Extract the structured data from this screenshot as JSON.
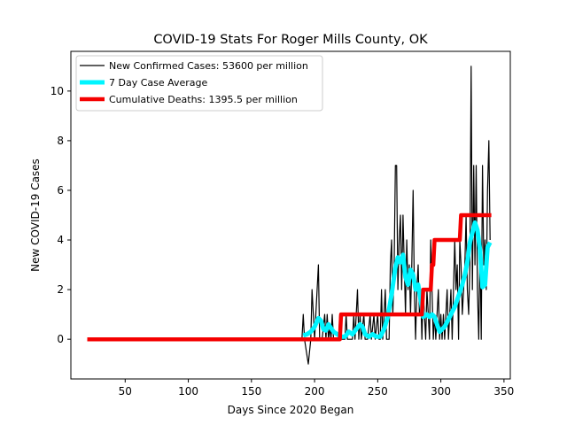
{
  "chart_data": {
    "type": "line",
    "title": "COVID-19 Stats For Roger Mills County, OK",
    "xlabel": "Days Since 2020 Began",
    "ylabel": "New COVID-19 Cases",
    "xlim": [
      7,
      355
    ],
    "ylim": [
      -1.6,
      11.6
    ],
    "xticks": [
      50,
      100,
      150,
      200,
      250,
      300,
      350
    ],
    "yticks": [
      0,
      2,
      4,
      6,
      8,
      10
    ],
    "grid": false,
    "legend_position": "upper-left",
    "series": [
      {
        "name": "New Confirmed Cases: 53600 per million",
        "color": "#000000",
        "points": [
          [
            20,
            0
          ],
          [
            190,
            0
          ],
          [
            191,
            1
          ],
          [
            192,
            0
          ],
          [
            195,
            -1
          ],
          [
            197,
            0
          ],
          [
            198,
            2
          ],
          [
            199,
            1
          ],
          [
            200,
            0
          ],
          [
            201,
            1
          ],
          [
            203,
            3
          ],
          [
            204,
            0
          ],
          [
            206,
            0
          ],
          [
            208,
            1
          ],
          [
            209,
            0
          ],
          [
            210,
            1
          ],
          [
            211,
            0
          ],
          [
            212,
            0.5
          ],
          [
            213,
            0
          ],
          [
            214,
            1
          ],
          [
            215,
            0
          ],
          [
            218,
            0
          ],
          [
            219,
            0
          ],
          [
            220,
            1
          ],
          [
            221,
            0
          ],
          [
            224,
            0
          ],
          [
            225,
            1
          ],
          [
            226,
            0
          ],
          [
            230,
            0
          ],
          [
            231,
            1
          ],
          [
            232,
            0
          ],
          [
            233,
            1
          ],
          [
            234,
            2
          ],
          [
            235,
            0
          ],
          [
            236,
            1
          ],
          [
            237,
            0
          ],
          [
            239,
            1
          ],
          [
            240,
            0
          ],
          [
            242,
            0
          ],
          [
            244,
            1
          ],
          [
            245,
            0
          ],
          [
            247,
            1
          ],
          [
            248,
            0
          ],
          [
            250,
            1
          ],
          [
            251,
            0
          ],
          [
            252,
            0
          ],
          [
            253,
            2
          ],
          [
            254,
            0
          ],
          [
            255,
            1
          ],
          [
            256,
            2
          ],
          [
            257,
            0
          ],
          [
            259,
            0
          ],
          [
            260,
            3
          ],
          [
            261,
            4
          ],
          [
            262,
            1
          ],
          [
            263,
            3
          ],
          [
            264,
            7
          ],
          [
            265,
            7
          ],
          [
            266,
            2
          ],
          [
            267,
            4
          ],
          [
            268,
            5
          ],
          [
            269,
            2
          ],
          [
            270,
            5
          ],
          [
            271,
            3
          ],
          [
            272,
            1
          ],
          [
            273,
            4
          ],
          [
            274,
            2
          ],
          [
            275,
            3
          ],
          [
            276,
            1
          ],
          [
            277,
            3
          ],
          [
            278,
            6
          ],
          [
            279,
            2
          ],
          [
            280,
            0
          ],
          [
            281,
            2
          ],
          [
            282,
            3
          ],
          [
            283,
            1
          ],
          [
            284,
            2
          ],
          [
            285,
            0
          ],
          [
            286,
            2
          ],
          [
            287,
            1
          ],
          [
            288,
            0
          ],
          [
            289,
            2
          ],
          [
            290,
            1
          ],
          [
            291,
            0
          ],
          [
            292,
            4
          ],
          [
            293,
            2
          ],
          [
            294,
            0
          ],
          [
            295,
            1
          ],
          [
            296,
            0
          ],
          [
            297,
            1
          ],
          [
            298,
            2
          ],
          [
            299,
            0
          ],
          [
            300,
            1
          ],
          [
            301,
            0
          ],
          [
            302,
            1
          ],
          [
            303,
            0
          ],
          [
            304,
            1
          ],
          [
            305,
            2
          ],
          [
            306,
            0
          ],
          [
            307,
            1
          ],
          [
            308,
            2
          ],
          [
            309,
            0
          ],
          [
            310,
            2
          ],
          [
            311,
            4
          ],
          [
            312,
            2
          ],
          [
            313,
            3
          ],
          [
            314,
            0
          ],
          [
            315,
            4
          ],
          [
            316,
            3
          ],
          [
            317,
            1
          ],
          [
            318,
            2
          ],
          [
            319,
            3
          ],
          [
            320,
            5
          ],
          [
            321,
            2
          ],
          [
            322,
            1
          ],
          [
            323,
            3
          ],
          [
            324,
            11
          ],
          [
            325,
            2
          ],
          [
            326,
            7
          ],
          [
            327,
            3
          ],
          [
            328,
            7
          ],
          [
            329,
            2
          ],
          [
            330,
            0
          ],
          [
            331,
            4
          ],
          [
            332,
            0
          ],
          [
            333,
            7
          ],
          [
            334,
            3
          ],
          [
            335,
            4
          ],
          [
            336,
            2
          ],
          [
            337,
            6
          ],
          [
            338,
            8
          ],
          [
            339,
            4
          ]
        ]
      },
      {
        "name": "7 Day Case Average",
        "color": "#00f5ff",
        "points": [
          [
            191,
            0.15
          ],
          [
            194,
            0.2
          ],
          [
            197,
            0.3
          ],
          [
            200,
            0.5
          ],
          [
            203,
            0.85
          ],
          [
            205,
            0.75
          ],
          [
            207,
            0.4
          ],
          [
            209,
            0.35
          ],
          [
            211,
            0.6
          ],
          [
            213,
            0.45
          ],
          [
            215,
            0.3
          ],
          [
            218,
            0.2
          ],
          [
            221,
            0.1
          ],
          [
            224,
            0.1
          ],
          [
            227,
            0.3
          ],
          [
            230,
            0.2
          ],
          [
            233,
            0.4
          ],
          [
            236,
            0.6
          ],
          [
            238,
            0.5
          ],
          [
            240,
            0.2
          ],
          [
            243,
            0.1
          ],
          [
            246,
            0.2
          ],
          [
            249,
            0.1
          ],
          [
            252,
            0.1
          ],
          [
            255,
            0.4
          ],
          [
            258,
            0.9
          ],
          [
            261,
            1.8
          ],
          [
            264,
            2.9
          ],
          [
            266,
            3.3
          ],
          [
            268,
            3.1
          ],
          [
            270,
            3.4
          ],
          [
            272,
            2.5
          ],
          [
            274,
            2.2
          ],
          [
            276,
            2.8
          ],
          [
            278,
            2.6
          ],
          [
            280,
            2.0
          ],
          [
            282,
            2.2
          ],
          [
            284,
            1.6
          ],
          [
            286,
            0.9
          ],
          [
            289,
            1.0
          ],
          [
            291,
            0.9
          ],
          [
            293,
            1.0
          ],
          [
            295,
            0.9
          ],
          [
            297,
            0.6
          ],
          [
            299,
            0.3
          ],
          [
            301,
            0.4
          ],
          [
            303,
            0.5
          ],
          [
            305,
            0.7
          ],
          [
            307,
            0.9
          ],
          [
            309,
            1.1
          ],
          [
            311,
            1.3
          ],
          [
            313,
            1.6
          ],
          [
            315,
            1.9
          ],
          [
            317,
            2.2
          ],
          [
            319,
            2.6
          ],
          [
            321,
            3.1
          ],
          [
            323,
            3.9
          ],
          [
            325,
            4.3
          ],
          [
            327,
            4.7
          ],
          [
            329,
            4.4
          ],
          [
            331,
            3.6
          ],
          [
            333,
            2.1
          ],
          [
            335,
            2.2
          ],
          [
            337,
            3.7
          ],
          [
            339,
            3.9
          ]
        ]
      },
      {
        "name": "Cumulative Deaths: 1395.5 per million",
        "color": "#f50000",
        "points": [
          [
            20,
            0
          ],
          [
            220,
            0
          ],
          [
            221,
            1
          ],
          [
            285,
            1
          ],
          [
            286,
            2
          ],
          [
            292,
            2
          ],
          [
            293,
            3
          ],
          [
            294,
            3
          ],
          [
            295,
            4
          ],
          [
            315,
            4
          ],
          [
            316,
            5
          ],
          [
            340,
            5
          ]
        ]
      }
    ]
  }
}
